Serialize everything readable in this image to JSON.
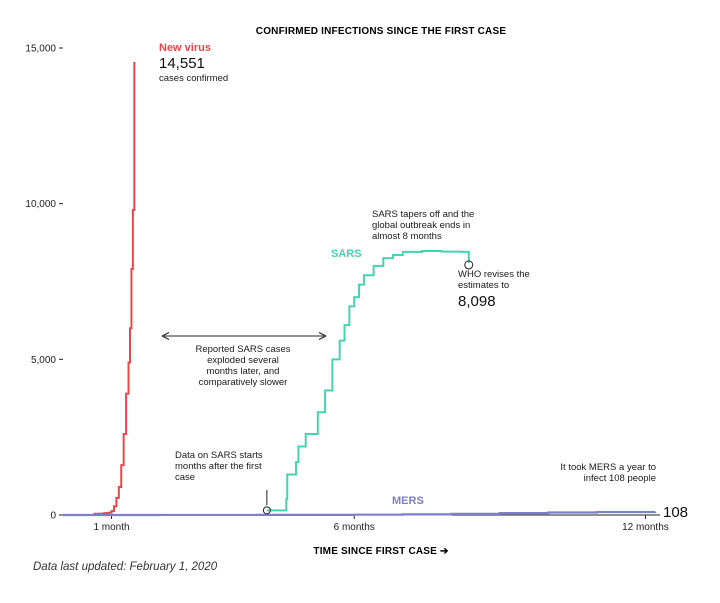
{
  "chart_data": {
    "type": "line",
    "title": "CONFIRMED INFECTIONS SINCE THE FIRST CASE",
    "xlabel": "TIME SINCE FIRST CASE ➔",
    "ylabel": "",
    "xlim": [
      0,
      12.3
    ],
    "ylim": [
      0,
      15000
    ],
    "y_ticks": [
      {
        "value": 0,
        "label": "0"
      },
      {
        "value": 5000,
        "label": "5,000"
      },
      {
        "value": 10000,
        "label": "10,000"
      },
      {
        "value": 15000,
        "label": "15,000"
      }
    ],
    "x_ticks": [
      {
        "value": 1,
        "label": "1 month"
      },
      {
        "value": 6,
        "label": "6 months"
      },
      {
        "value": 12,
        "label": "12 months"
      }
    ],
    "grid": false,
    "colors": {
      "new_virus": "#e8484b",
      "sars": "#45d4b0",
      "mers": "#7d7fc9"
    },
    "series": [
      {
        "key": "new_virus",
        "name": "New virus",
        "x": [
          0.5,
          0.65,
          0.75,
          0.85,
          0.9,
          0.95,
          1.0,
          1.05,
          1.1,
          1.15,
          1.2,
          1.25,
          1.3,
          1.35,
          1.38,
          1.41,
          1.44,
          1.47
        ],
        "y": [
          0,
          40,
          45,
          60,
          60,
          75,
          130,
          280,
          550,
          900,
          1600,
          2600,
          3900,
          4900,
          6000,
          7900,
          9800,
          14551
        ]
      },
      {
        "key": "sars",
        "name": "SARS",
        "x": [
          4.2,
          4.6,
          4.62,
          4.8,
          4.85,
          5.0,
          5.25,
          5.4,
          5.55,
          5.7,
          5.8,
          5.9,
          6.0,
          6.1,
          6.2,
          6.4,
          6.6,
          6.8,
          7.0,
          7.4,
          7.8,
          8.2,
          8.35,
          8.36
        ],
        "y": [
          150,
          500,
          1300,
          1700,
          2200,
          2600,
          3300,
          4000,
          5000,
          5600,
          6100,
          6700,
          7000,
          7400,
          7700,
          8000,
          8250,
          8350,
          8450,
          8480,
          8460,
          8450,
          8450,
          8098
        ]
      },
      {
        "key": "mers",
        "name": "MERS",
        "x": [
          0,
          2,
          4,
          6,
          7,
          8,
          9,
          10,
          11,
          12.2
        ],
        "y": [
          0,
          2,
          5,
          10,
          20,
          35,
          60,
          80,
          95,
          108
        ]
      }
    ],
    "annotations": {
      "new_virus_value": "14,551",
      "new_virus_note": "cases confirmed",
      "sars_tapers": "SARS tapers off and the global outbreak ends in almost 8 months",
      "who_revises": "WHO revises the estimates to",
      "sars_value": "8,098",
      "comparison": "Reported SARS cases exploded several months later, and comparatively slower",
      "sars_start": "Data on SARS starts months after the first case",
      "mers_note": "It took MERS a year to infect 108 people",
      "mers_value": "108"
    }
  },
  "footnote": "Data last updated: February 1, 2020"
}
